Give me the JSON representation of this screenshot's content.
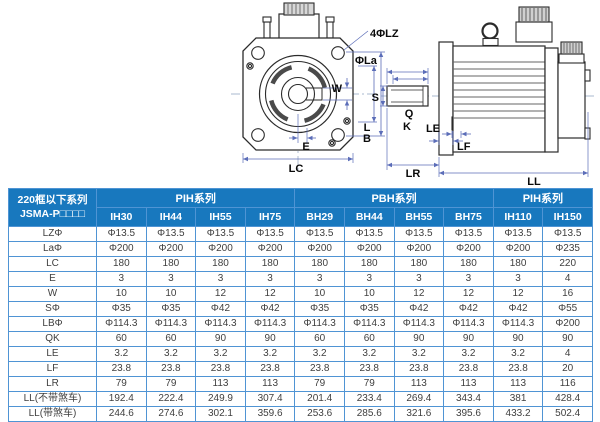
{
  "colors": {
    "header_blue": "#1878be",
    "table_border_blue": "#4f94d4",
    "table_top_border": "#1464a8",
    "cell_text": "#3f3f3f",
    "dimension_line_blue": "#5b6db8",
    "drawing_line": "#2b2b2b"
  },
  "diagram": {
    "labels": {
      "bolt_holes": "4ΦLZ",
      "bolt_circle_dia": "ΦLa",
      "keyway_width": "W",
      "keyway_offset": "E",
      "flange_width": "LC",
      "shaft_dia": "S",
      "key_q": "Q",
      "key_k": "K",
      "spigot_l": "L",
      "spigot_b": "B",
      "flange_lip": "LE",
      "flange_thickness": "LF",
      "shaft_length": "LR",
      "body_length": "LL"
    }
  },
  "table": {
    "corner_header": {
      "line1": "220框以下系列",
      "line2": "JSMA-P□□□□"
    },
    "groups": [
      {
        "label": "PIH系列",
        "span": 4
      },
      {
        "label": "PBH系列",
        "span": 4
      },
      {
        "label": "PIH系列",
        "span": 2
      }
    ],
    "models": [
      "IH30",
      "IH44",
      "IH55",
      "IH75",
      "BH29",
      "BH44",
      "BH55",
      "BH75",
      "IH110",
      "IH150"
    ],
    "rows": [
      {
        "label": "LZΦ",
        "values": [
          "Φ13.5",
          "Φ13.5",
          "Φ13.5",
          "Φ13.5",
          "Φ13.5",
          "Φ13.5",
          "Φ13.5",
          "Φ13.5",
          "Φ13.5",
          "Φ13.5"
        ]
      },
      {
        "label": "LaΦ",
        "values": [
          "Φ200",
          "Φ200",
          "Φ200",
          "Φ200",
          "Φ200",
          "Φ200",
          "Φ200",
          "Φ200",
          "Φ200",
          "Φ235"
        ]
      },
      {
        "label": "LC",
        "values": [
          "180",
          "180",
          "180",
          "180",
          "180",
          "180",
          "180",
          "180",
          "180",
          "220"
        ]
      },
      {
        "label": "E",
        "values": [
          "3",
          "3",
          "3",
          "3",
          "3",
          "3",
          "3",
          "3",
          "3",
          "4"
        ]
      },
      {
        "label": "W",
        "values": [
          "10",
          "10",
          "12",
          "12",
          "10",
          "10",
          "12",
          "12",
          "12",
          "16"
        ]
      },
      {
        "label": "SΦ",
        "values": [
          "Φ35",
          "Φ35",
          "Φ42",
          "Φ42",
          "Φ35",
          "Φ35",
          "Φ42",
          "Φ42",
          "Φ42",
          "Φ55"
        ]
      },
      {
        "label": "LBΦ",
        "values": [
          "Φ114.3",
          "Φ114.3",
          "Φ114.3",
          "Φ114.3",
          "Φ114.3",
          "Φ114.3",
          "Φ114.3",
          "Φ114.3",
          "Φ114.3",
          "Φ200"
        ]
      },
      {
        "label": "QK",
        "values": [
          "60",
          "60",
          "90",
          "90",
          "60",
          "60",
          "90",
          "90",
          "90",
          "90"
        ]
      },
      {
        "label": "LE",
        "values": [
          "3.2",
          "3.2",
          "3.2",
          "3.2",
          "3.2",
          "3.2",
          "3.2",
          "3.2",
          "3.2",
          "4"
        ]
      },
      {
        "label": "LF",
        "values": [
          "23.8",
          "23.8",
          "23.8",
          "23.8",
          "23.8",
          "23.8",
          "23.8",
          "23.8",
          "23.8",
          "20"
        ]
      },
      {
        "label": "LR",
        "values": [
          "79",
          "79",
          "113",
          "113",
          "79",
          "79",
          "113",
          "113",
          "113",
          "116"
        ]
      },
      {
        "label": "LL(不带煞车)",
        "values": [
          "192.4",
          "222.4",
          "249.9",
          "307.4",
          "201.4",
          "233.4",
          "269.4",
          "343.4",
          "381",
          "428.4"
        ]
      },
      {
        "label": "LL(带煞车)",
        "values": [
          "244.6",
          "274.6",
          "302.1",
          "359.6",
          "253.6",
          "285.6",
          "321.6",
          "395.6",
          "433.2",
          "502.4"
        ]
      }
    ]
  }
}
